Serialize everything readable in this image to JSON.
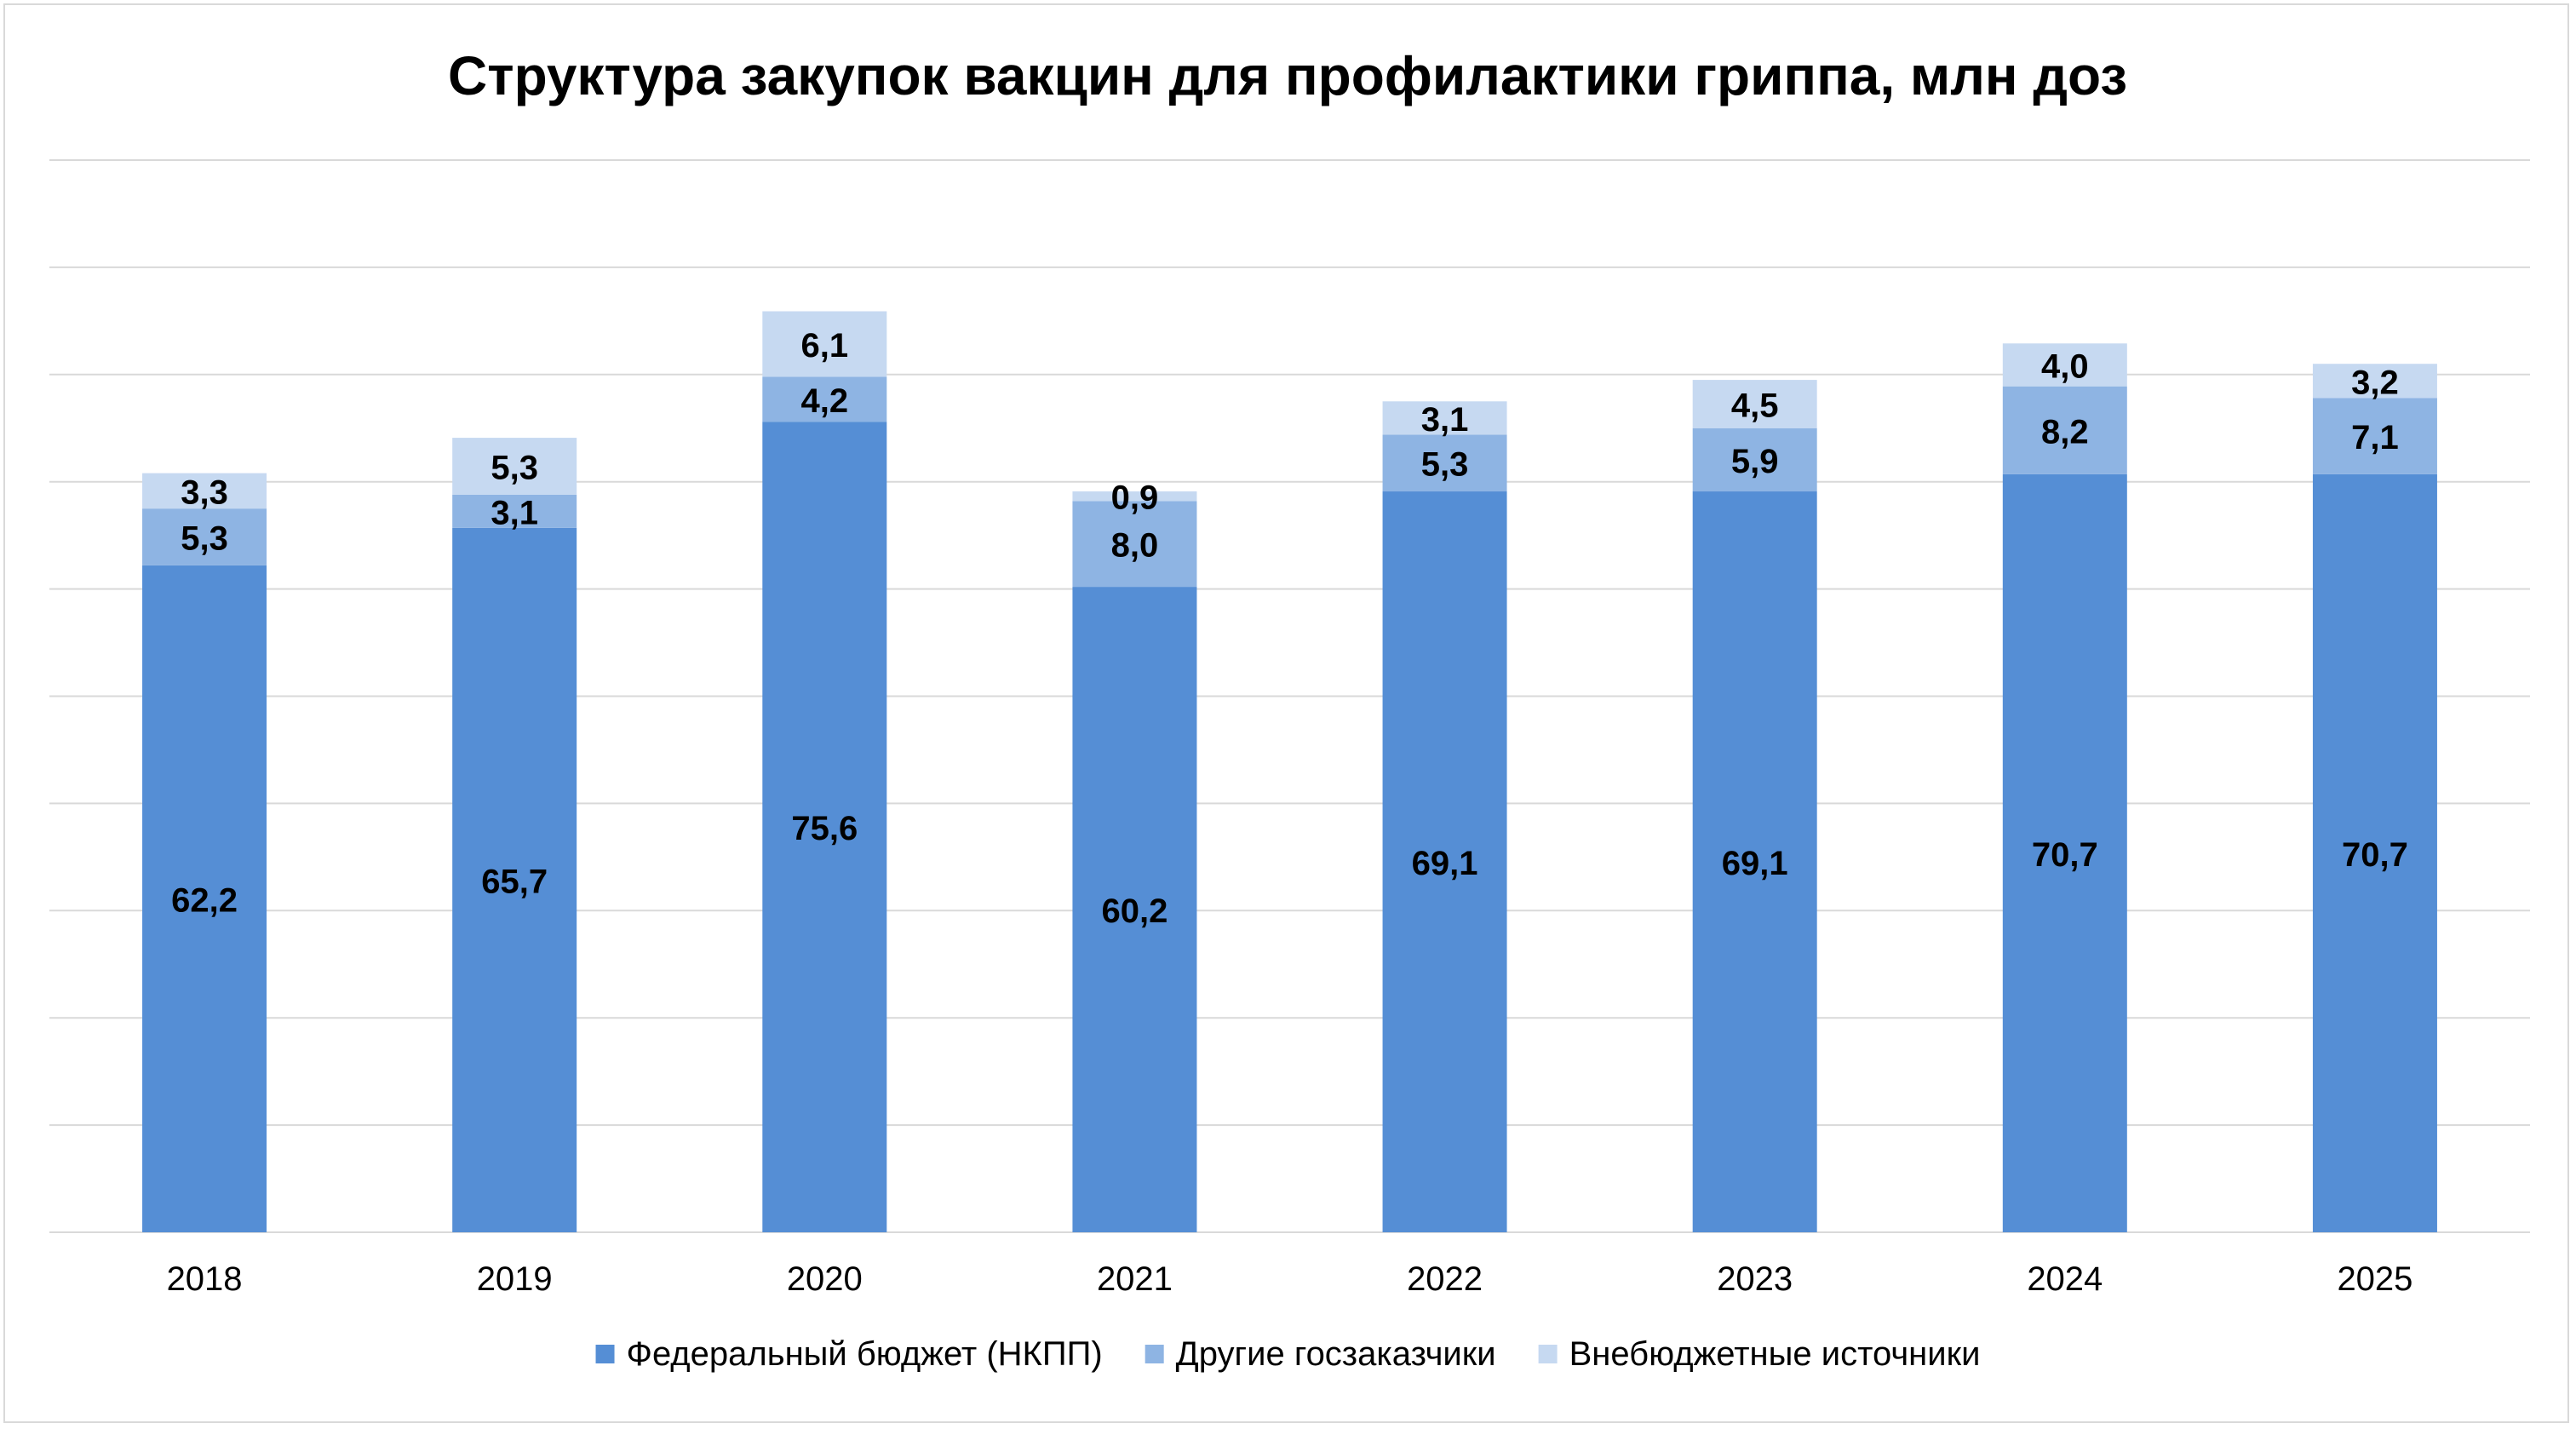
{
  "chart_data": {
    "type": "bar",
    "stacked": true,
    "title": "Структура закупок вакцин для профилактики гриппа, млн доз",
    "xlabel": "",
    "ylabel": "",
    "ylim": [
      0,
      100
    ],
    "y_gridline_step": 10,
    "y_tick_labels_visible": false,
    "grid": true,
    "legend_position": "bottom",
    "categories": [
      "2018",
      "2019",
      "2020",
      "2021",
      "2022",
      "2023",
      "2024",
      "2025"
    ],
    "series": [
      {
        "name": "Федеральный бюджет (НКПП)",
        "color": "#558ed5",
        "values": [
          62.2,
          65.7,
          75.6,
          60.2,
          69.1,
          69.1,
          70.7,
          70.7
        ],
        "labels": [
          "62,2",
          "65,7",
          "75,6",
          "60,2",
          "69,1",
          "69,1",
          "70,7",
          "70,7"
        ]
      },
      {
        "name": "Другие госзаказчики",
        "color": "#8eb4e3",
        "values": [
          5.3,
          3.1,
          4.2,
          8.0,
          5.3,
          5.9,
          8.2,
          7.1
        ],
        "labels": [
          "5,3",
          "3,1",
          "4,2",
          "8,0",
          "5,3",
          "5,9",
          "8,2",
          "7,1"
        ]
      },
      {
        "name": "Внебюджетные источники",
        "color": "#c6d9f1",
        "values": [
          3.3,
          5.3,
          6.1,
          0.9,
          3.1,
          4.5,
          4.0,
          3.2
        ],
        "labels": [
          "3,3",
          "5,3",
          "6,1",
          "0,9",
          "3,1",
          "4,5",
          "4,0",
          "3,2"
        ]
      }
    ],
    "gridline_color": "#d9d9d9",
    "label_color": "#000000"
  }
}
